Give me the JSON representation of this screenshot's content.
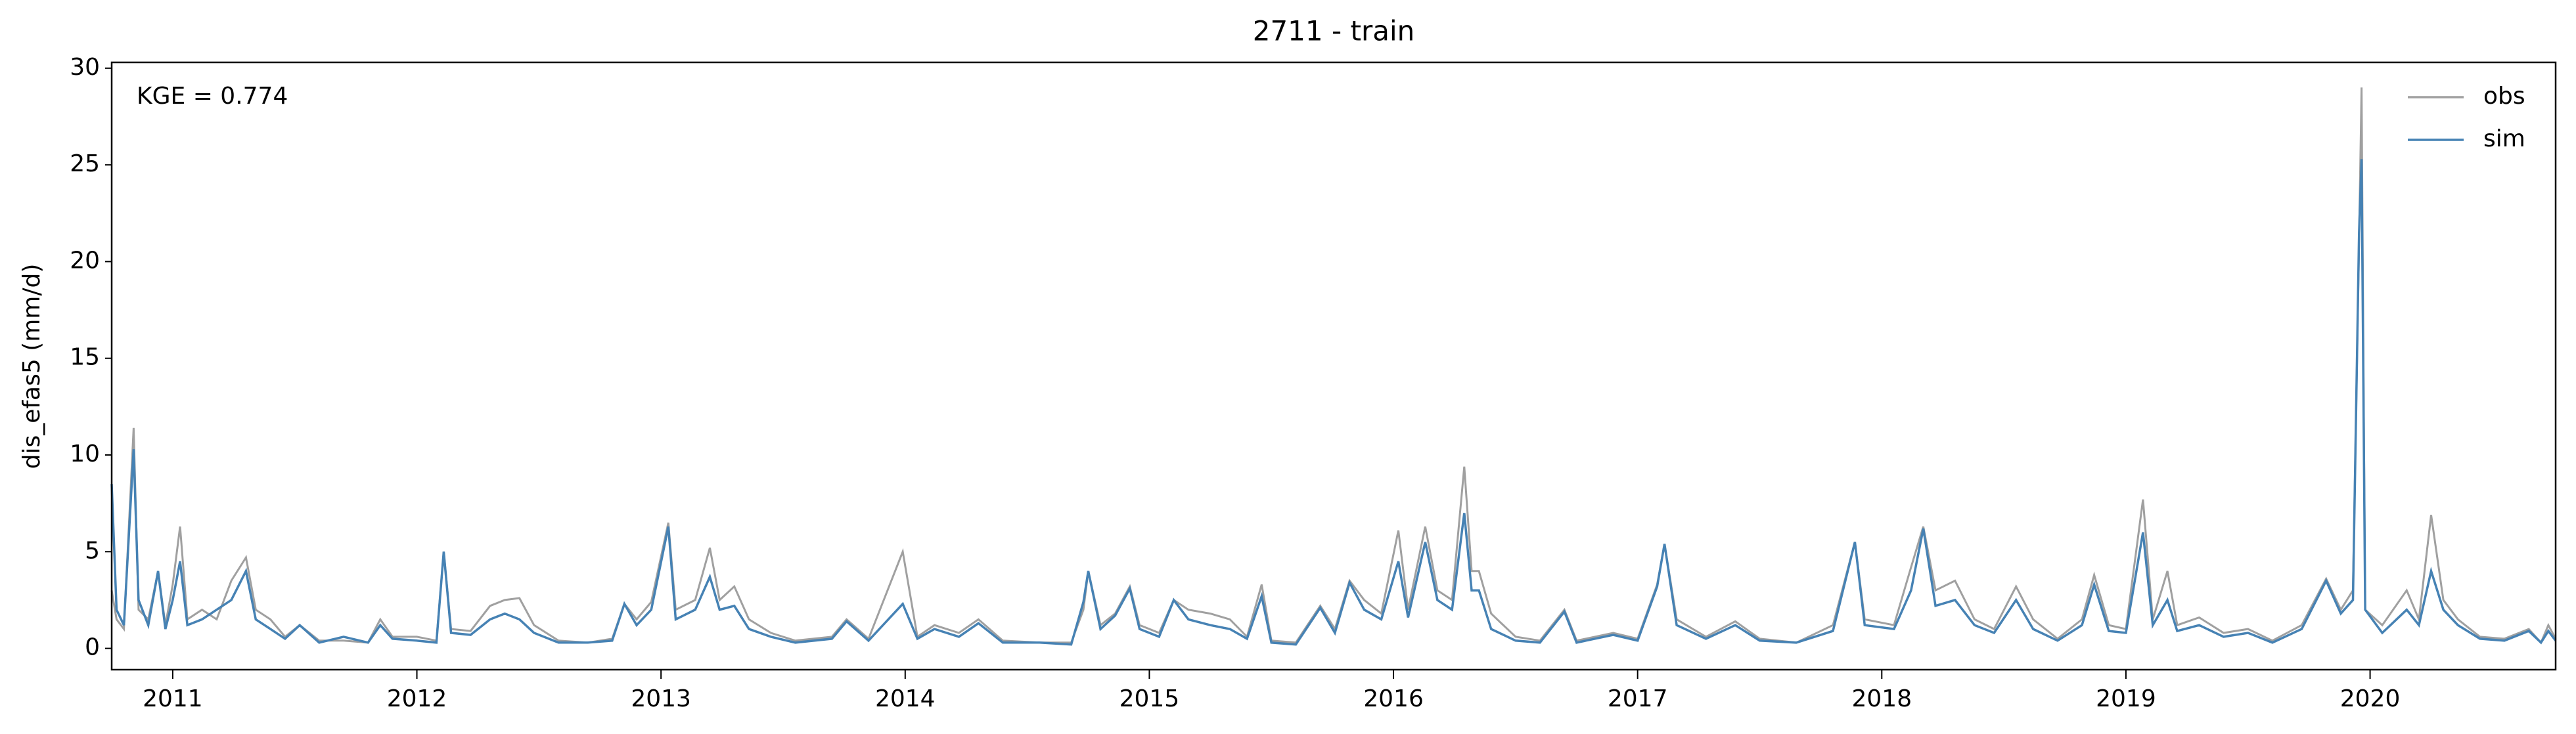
{
  "chart_data": {
    "type": "line",
    "title": "2711 - train",
    "ylabel": "dis_efas5 (mm/d)",
    "annotation": "KGE = 0.774",
    "x": [
      2010.75,
      2010.77,
      2010.8,
      2010.84,
      2010.86,
      2010.9,
      2010.94,
      2010.97,
      2011.0,
      2011.03,
      2011.06,
      2011.12,
      2011.18,
      2011.24,
      2011.3,
      2011.34,
      2011.4,
      2011.46,
      2011.52,
      2011.6,
      2011.7,
      2011.8,
      2011.85,
      2011.9,
      2012.0,
      2012.08,
      2012.11,
      2012.14,
      2012.22,
      2012.3,
      2012.36,
      2012.42,
      2012.48,
      2012.58,
      2012.7,
      2012.8,
      2012.85,
      2012.9,
      2012.96,
      2013.03,
      2013.06,
      2013.14,
      2013.2,
      2013.24,
      2013.3,
      2013.36,
      2013.45,
      2013.55,
      2013.7,
      2013.76,
      2013.85,
      2013.99,
      2014.05,
      2014.12,
      2014.22,
      2014.3,
      2014.4,
      2014.55,
      2014.68,
      2014.73,
      2014.75,
      2014.8,
      2014.86,
      2014.92,
      2014.96,
      2015.04,
      2015.1,
      2015.16,
      2015.25,
      2015.33,
      2015.4,
      2015.46,
      2015.5,
      2015.6,
      2015.7,
      2015.76,
      2015.82,
      2015.88,
      2015.95,
      2016.02,
      2016.06,
      2016.13,
      2016.18,
      2016.24,
      2016.29,
      2016.32,
      2016.35,
      2016.4,
      2016.5,
      2016.6,
      2016.7,
      2016.75,
      2016.9,
      2017.0,
      2017.08,
      2017.11,
      2017.16,
      2017.28,
      2017.4,
      2017.5,
      2017.65,
      2017.8,
      2017.89,
      2017.93,
      2018.05,
      2018.12,
      2018.17,
      2018.22,
      2018.3,
      2018.38,
      2018.46,
      2018.55,
      2018.62,
      2018.72,
      2018.82,
      2018.87,
      2018.93,
      2019.0,
      2019.07,
      2019.11,
      2019.17,
      2019.21,
      2019.3,
      2019.4,
      2019.5,
      2019.6,
      2019.72,
      2019.82,
      2019.88,
      2019.93,
      2019.955,
      2019.965,
      2019.98,
      2020.05,
      2020.15,
      2020.2,
      2020.25,
      2020.3,
      2020.36,
      2020.45,
      2020.55,
      2020.65,
      2020.7,
      2020.73,
      2020.76
    ],
    "series": [
      {
        "name": "obs",
        "color": "#a0a0a0",
        "values": [
          3.0,
          1.5,
          1.0,
          11.4,
          2.0,
          1.5,
          4.0,
          1.2,
          3.3,
          6.3,
          1.5,
          2.0,
          1.5,
          3.5,
          4.7,
          2.0,
          1.5,
          0.6,
          1.2,
          0.4,
          0.4,
          0.3,
          1.5,
          0.6,
          0.6,
          0.4,
          5.0,
          1.0,
          0.9,
          2.2,
          2.5,
          2.6,
          1.2,
          0.4,
          0.3,
          0.5,
          2.3,
          1.5,
          2.4,
          6.5,
          2.0,
          2.5,
          5.2,
          2.5,
          3.2,
          1.5,
          0.8,
          0.4,
          0.6,
          1.5,
          0.5,
          5.0,
          0.6,
          1.2,
          0.8,
          1.5,
          0.4,
          0.3,
          0.3,
          2.0,
          4.0,
          1.2,
          1.8,
          3.2,
          1.2,
          0.8,
          2.5,
          2.0,
          1.8,
          1.5,
          0.6,
          3.3,
          0.4,
          0.3,
          2.2,
          1.0,
          3.5,
          2.5,
          1.8,
          6.1,
          2.0,
          6.3,
          3.0,
          2.5,
          9.4,
          4.0,
          4.0,
          1.8,
          0.6,
          0.4,
          2.0,
          0.4,
          0.8,
          0.5,
          3.3,
          5.4,
          1.5,
          0.6,
          1.4,
          0.5,
          0.3,
          1.2,
          5.5,
          1.5,
          1.2,
          4.2,
          6.3,
          3.0,
          3.5,
          1.5,
          1.0,
          3.2,
          1.5,
          0.5,
          1.5,
          3.8,
          1.2,
          1.0,
          7.7,
          1.5,
          4.0,
          1.2,
          1.6,
          0.8,
          1.0,
          0.4,
          1.2,
          3.6,
          2.0,
          3.0,
          21.0,
          29.0,
          2.0,
          1.2,
          3.0,
          1.5,
          6.9,
          2.5,
          1.5,
          0.6,
          0.5,
          1.0,
          0.3,
          1.2,
          0.5
        ]
      },
      {
        "name": "sim",
        "color": "#4682b4",
        "values": [
          8.5,
          2.0,
          1.2,
          10.3,
          2.5,
          1.2,
          4.0,
          1.0,
          2.5,
          4.5,
          1.2,
          1.5,
          2.0,
          2.5,
          4.0,
          1.5,
          1.0,
          0.5,
          1.2,
          0.3,
          0.6,
          0.3,
          1.2,
          0.5,
          0.4,
          0.3,
          5.0,
          0.8,
          0.7,
          1.5,
          1.8,
          1.5,
          0.8,
          0.3,
          0.3,
          0.4,
          2.3,
          1.2,
          2.0,
          6.3,
          1.5,
          2.0,
          3.7,
          2.0,
          2.2,
          1.0,
          0.6,
          0.3,
          0.5,
          1.4,
          0.4,
          2.3,
          0.5,
          1.0,
          0.6,
          1.3,
          0.3,
          0.3,
          0.2,
          2.4,
          4.0,
          1.0,
          1.7,
          3.1,
          1.0,
          0.6,
          2.5,
          1.5,
          1.2,
          1.0,
          0.5,
          2.7,
          0.3,
          0.2,
          2.1,
          0.8,
          3.4,
          2.0,
          1.5,
          4.5,
          1.6,
          5.5,
          2.5,
          2.0,
          7.0,
          3.0,
          3.0,
          1.0,
          0.4,
          0.3,
          1.9,
          0.3,
          0.7,
          0.4,
          3.2,
          5.4,
          1.2,
          0.5,
          1.2,
          0.4,
          0.3,
          0.9,
          5.5,
          1.2,
          1.0,
          3.0,
          6.2,
          2.2,
          2.5,
          1.2,
          0.8,
          2.5,
          1.0,
          0.4,
          1.2,
          3.3,
          0.9,
          0.8,
          6.0,
          1.2,
          2.5,
          0.9,
          1.2,
          0.6,
          0.8,
          0.3,
          1.0,
          3.5,
          1.8,
          2.5,
          21.5,
          25.3,
          2.0,
          0.8,
          2.0,
          1.2,
          4.0,
          2.0,
          1.2,
          0.5,
          0.4,
          0.9,
          0.3,
          0.9,
          0.4
        ]
      }
    ],
    "xlim": [
      2010.75,
      2020.76
    ],
    "xticks": [
      2011,
      2012,
      2013,
      2014,
      2015,
      2016,
      2017,
      2018,
      2019,
      2020
    ],
    "ylim": [
      -1.1,
      30.3
    ],
    "yticks": [
      0,
      5,
      10,
      15,
      20,
      25,
      30
    ],
    "legend": "upper right"
  }
}
